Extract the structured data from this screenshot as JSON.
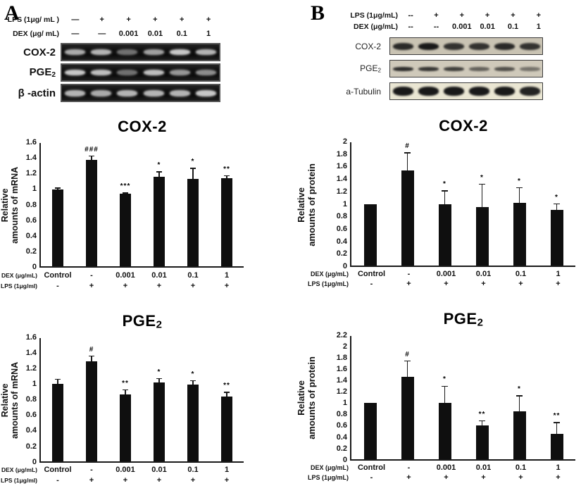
{
  "panels": [
    {
      "label": "A",
      "treatment": {
        "rows": [
          {
            "label": "LPS (1μg/ mL )",
            "values": [
              "—",
              "+",
              "+",
              "+",
              "+",
              "+"
            ]
          },
          {
            "label": "DEX (μg/ mL)",
            "values": [
              "—",
              "—",
              "0.001",
              "0.01",
              "0.1",
              "1"
            ]
          }
        ]
      },
      "gel": {
        "kind": "agarose-gel-dark",
        "strip_bg": "#141414",
        "band_color": "#d2d2d2",
        "rows": [
          {
            "label": {
              "text": "COX-2",
              "sub": ""
            },
            "band_h": 8,
            "intensities": [
              0.8,
              0.85,
              0.5,
              0.75,
              0.95,
              0.85
            ]
          },
          {
            "label": {
              "text": "PGE",
              "sub": "2"
            },
            "band_h": 8,
            "intensities": [
              0.95,
              0.9,
              0.5,
              0.9,
              0.7,
              0.65
            ]
          },
          {
            "label": {
              "text": "β -actin",
              "sub": ""
            },
            "band_h": 9,
            "intensities": [
              0.85,
              0.8,
              0.85,
              0.85,
              0.85,
              0.95
            ]
          }
        ]
      }
    },
    {
      "label": "B",
      "treatment": {
        "rows": [
          {
            "label": "LPS (1μg/mL)",
            "values": [
              "--",
              "+",
              "+",
              "+",
              "+",
              "+"
            ]
          },
          {
            "label": "DEX (μg/mL)",
            "values": [
              "--",
              "--",
              "0.001",
              "0.01",
              "0.1",
              "1"
            ]
          }
        ]
      },
      "gel": {
        "kind": "western-blot-light",
        "band_color": "#191919",
        "rows": [
          {
            "label": {
              "text": "COX-2",
              "sub": ""
            },
            "bg": "#c9c3b3",
            "band_h": 10,
            "intensities": [
              0.9,
              1,
              0.85,
              0.85,
              0.9,
              0.85
            ]
          },
          {
            "label": {
              "text": "PGE",
              "sub": "2"
            },
            "bg": "#cfc9ba",
            "band_h": 6,
            "intensities": [
              0.9,
              0.85,
              0.8,
              0.6,
              0.7,
              0.5
            ]
          },
          {
            "label": {
              "text": "a-Tubulin",
              "sub": ""
            },
            "bg": "#eae6d3",
            "band_h": 13,
            "intensities": [
              1,
              1,
              1,
              1,
              1,
              0.95
            ]
          }
        ]
      }
    }
  ],
  "chart_data": [
    {
      "type": "bar",
      "title": "COX-2",
      "title_sub": "",
      "ylabel_lines": [
        "Relative",
        "amounts of mRNA"
      ],
      "ymax": 1.6,
      "ylim": [
        0,
        1.6
      ],
      "grid": false,
      "legend": "none",
      "yticks": [
        "0",
        "0.2",
        "0.4",
        "0.6",
        "0.8",
        "1",
        "1.2",
        "1.4",
        "1.6"
      ],
      "categories": [
        "Control",
        "-",
        "0.001",
        "0.01",
        "0.1",
        "1"
      ],
      "values": [
        1.0,
        1.38,
        0.94,
        1.16,
        1.13,
        1.14
      ],
      "errors": [
        0.02,
        0.06,
        0.02,
        0.07,
        0.15,
        0.04
      ],
      "annotations": [
        "",
        "###",
        "***",
        "*",
        "*",
        "**"
      ],
      "bar_color": "#0f0f0f",
      "xrows": [
        {
          "label": "DEX (μg/mL)",
          "values": [
            "Control",
            "-",
            "0.001",
            "0.01",
            "0.1",
            "1"
          ]
        },
        {
          "label": "LPS (1μg/ml)",
          "values": [
            "-",
            "+",
            "+",
            "+",
            "+",
            "+"
          ]
        }
      ]
    },
    {
      "type": "bar",
      "title": "PGE",
      "title_sub": "2",
      "ylabel_lines": [
        "Relative",
        "amounts of mRNA"
      ],
      "ymax": 1.6,
      "ylim": [
        0,
        1.6
      ],
      "grid": false,
      "legend": "none",
      "yticks": [
        "0",
        "0.2",
        "0.4",
        "0.6",
        "0.8",
        "1",
        "1.2",
        "1.4",
        "1.6"
      ],
      "categories": [
        "Control",
        "-",
        "0.001",
        "0.01",
        "0.1",
        "1"
      ],
      "values": [
        1.0,
        1.3,
        0.87,
        1.02,
        0.99,
        0.84
      ],
      "errors": [
        0.07,
        0.07,
        0.06,
        0.06,
        0.06,
        0.06
      ],
      "annotations": [
        "",
        "#",
        "**",
        "*",
        "*",
        "**"
      ],
      "bar_color": "#0f0f0f",
      "xrows": [
        {
          "label": "DEX (μg/mL)",
          "values": [
            "Control",
            "-",
            "0.001",
            "0.01",
            "0.1",
            "1"
          ]
        },
        {
          "label": "LPS (1μg/ml)",
          "values": [
            "-",
            "+",
            "+",
            "+",
            "+",
            "+"
          ]
        }
      ]
    },
    {
      "type": "bar",
      "title": "COX-2",
      "title_sub": "",
      "ylabel_lines": [
        "Relative",
        "amounts of protein"
      ],
      "ymax": 2,
      "ylim": [
        0,
        2
      ],
      "grid": false,
      "legend": "none",
      "yticks": [
        "0",
        "0.2",
        "0.4",
        "0.6",
        "0.8",
        "1",
        "1.2",
        "1.4",
        "1.6",
        "1.8",
        "2"
      ],
      "categories": [
        "Control",
        "-",
        "0.001",
        "0.01",
        "0.1",
        "1"
      ],
      "values": [
        1.0,
        1.54,
        1.0,
        0.95,
        1.02,
        0.9
      ],
      "errors": [
        0,
        0.3,
        0.22,
        0.38,
        0.25,
        0.11
      ],
      "annotations": [
        "",
        "#",
        "*",
        "*",
        "*",
        "*"
      ],
      "bar_color": "#0f0f0f",
      "xrows": [
        {
          "label": "DEX (μg/mL)",
          "values": [
            "Control",
            "-",
            "0.001",
            "0.01",
            "0.1",
            "1"
          ]
        },
        {
          "label": "LPS (1μg/mL)",
          "values": [
            "-",
            "+",
            "+",
            "+",
            "+",
            "+"
          ]
        }
      ]
    },
    {
      "type": "bar",
      "title": "PGE",
      "title_sub": "2",
      "ylabel_lines": [
        "Relative",
        "amounts of protein"
      ],
      "ymax": 2.2,
      "ylim": [
        0,
        2.2
      ],
      "grid": false,
      "legend": "none",
      "yticks": [
        "0",
        "0.2",
        "0.4",
        "0.6",
        "0.8",
        "1",
        "1.2",
        "1.4",
        "1.6",
        "1.8",
        "2",
        "2.2"
      ],
      "categories": [
        "Control",
        "-",
        "0.001",
        "0.01",
        "0.1",
        "1"
      ],
      "values": [
        1.0,
        1.47,
        1.0,
        0.6,
        0.85,
        0.45
      ],
      "errors": [
        0,
        0.29,
        0.31,
        0.09,
        0.29,
        0.21
      ],
      "annotations": [
        "",
        "#",
        "*",
        "**",
        "*",
        "**"
      ],
      "bar_color": "#0f0f0f",
      "xrows": [
        {
          "label": "DEX (μg/mL)",
          "values": [
            "Control",
            "-",
            "0.001",
            "0.01",
            "0.1",
            "1"
          ]
        },
        {
          "label": "LPS (1μg/mL)",
          "values": [
            "-",
            "+",
            "+",
            "+",
            "+",
            "+"
          ]
        }
      ]
    }
  ]
}
